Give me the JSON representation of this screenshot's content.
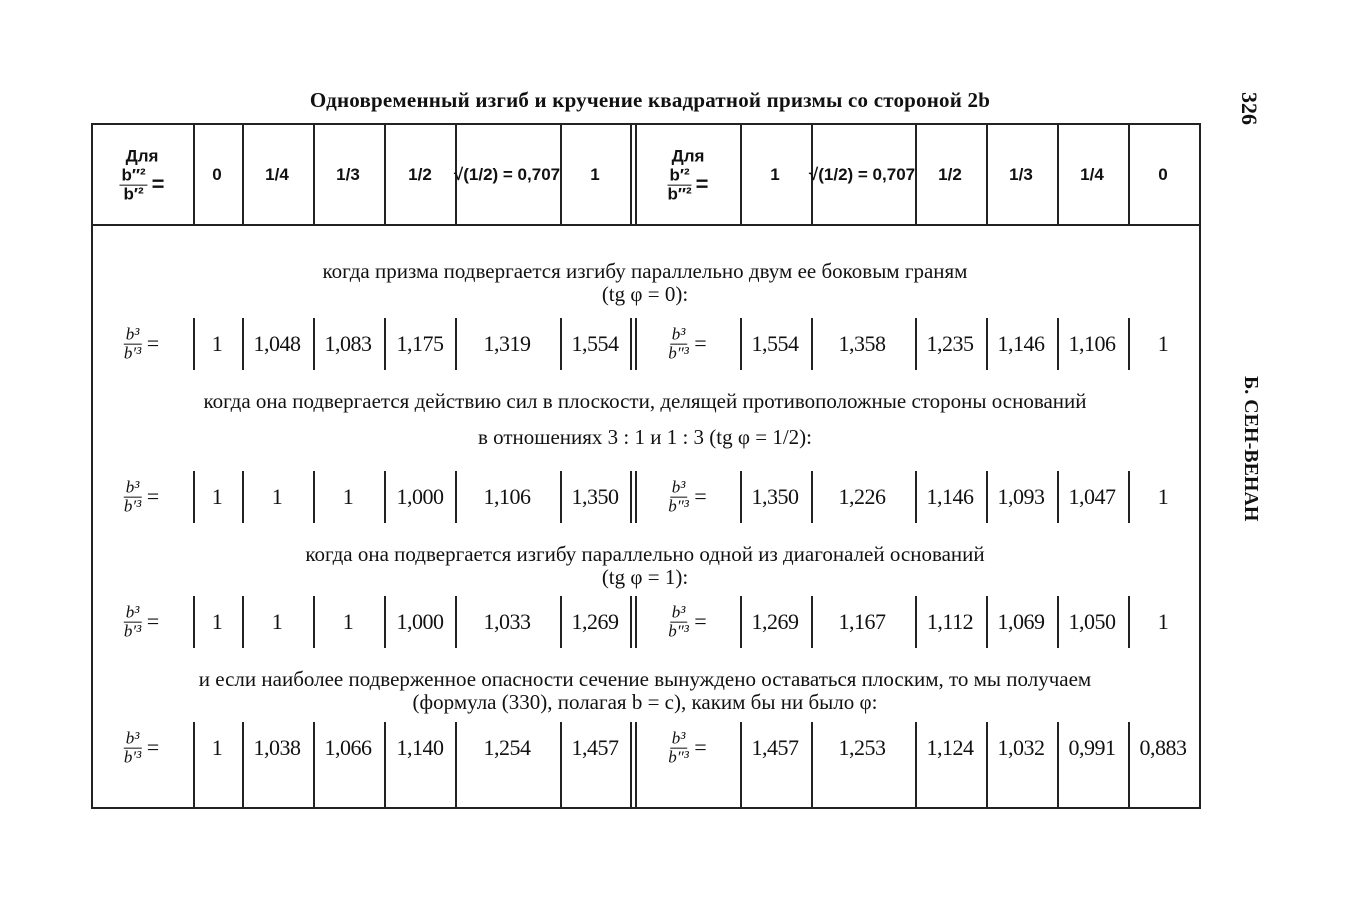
{
  "title": "Одновременный изгиб и кручение квадратной призмы со стороной 2b",
  "page_number": "326",
  "running_head": "Б. СЕН-ВЕНАН",
  "header": {
    "left_label": {
      "word": "Для",
      "num": "b″²",
      "den": "b′²",
      "eq": "="
    },
    "left_values": [
      "0",
      "1/4",
      "1/3",
      "1/2",
      "√(1/2) = 0,707",
      "1"
    ],
    "right_label": {
      "word": "Для",
      "num": "b′²",
      "den": "b″²",
      "eq": "="
    },
    "right_values": [
      "1",
      "√(1/2) = 0,707",
      "1/2",
      "1/3",
      "1/4",
      "0"
    ]
  },
  "sections": [
    {
      "caption": "когда призма подвергается изгибу параллельно двум ее боковым граням",
      "caption2": "(tg φ = 0):",
      "left_label": {
        "num": "b³",
        "den": "b′³",
        "eq": "="
      },
      "right_label": {
        "num": "b³",
        "den": "b″³",
        "eq": "="
      },
      "left": [
        "1",
        "1,048",
        "1,083",
        "1,175",
        "1,319",
        "1,554"
      ],
      "right": [
        "1,554",
        "1,358",
        "1,235",
        "1,146",
        "1,106",
        "1"
      ]
    },
    {
      "caption": "когда она подвергается действию сил в плоскости, делящей противоположные стороны оснований",
      "caption2": "в отношениях 3 : 1 и 1 : 3 (tg φ = 1/2):",
      "left_label": {
        "num": "b³",
        "den": "b′³",
        "eq": "="
      },
      "right_label": {
        "num": "b³",
        "den": "b″³",
        "eq": "="
      },
      "left": [
        "1",
        "1",
        "1",
        "1,000",
        "1,106",
        "1,350"
      ],
      "right": [
        "1,350",
        "1,226",
        "1,146",
        "1,093",
        "1,047",
        "1"
      ]
    },
    {
      "caption": "когда она подвергается изгибу параллельно одной из диагоналей оснований",
      "caption2": "(tg φ = 1):",
      "left_label": {
        "num": "b³",
        "den": "b′³",
        "eq": "="
      },
      "right_label": {
        "num": "b³",
        "den": "b″³",
        "eq": "="
      },
      "left": [
        "1",
        "1",
        "1",
        "1,000",
        "1,033",
        "1,269"
      ],
      "right": [
        "1,269",
        "1,167",
        "1,112",
        "1,069",
        "1,050",
        "1"
      ]
    },
    {
      "caption": "и если наиболее подверженное опасности сечение вынуждено оставаться плоским, то мы получаем",
      "caption2": "(формула (330), полагая b = c), каким бы ни было φ:",
      "left_label": {
        "num": "b³",
        "den": "b′³",
        "eq": "="
      },
      "right_label": {
        "num": "b³",
        "den": "b″³",
        "eq": "="
      },
      "left": [
        "1",
        "1,038",
        "1,066",
        "1,140",
        "1,254",
        "1,457"
      ],
      "right": [
        "1,457",
        "1,253",
        "1,124",
        "1,032",
        "0,991",
        "0,883"
      ]
    }
  ]
}
